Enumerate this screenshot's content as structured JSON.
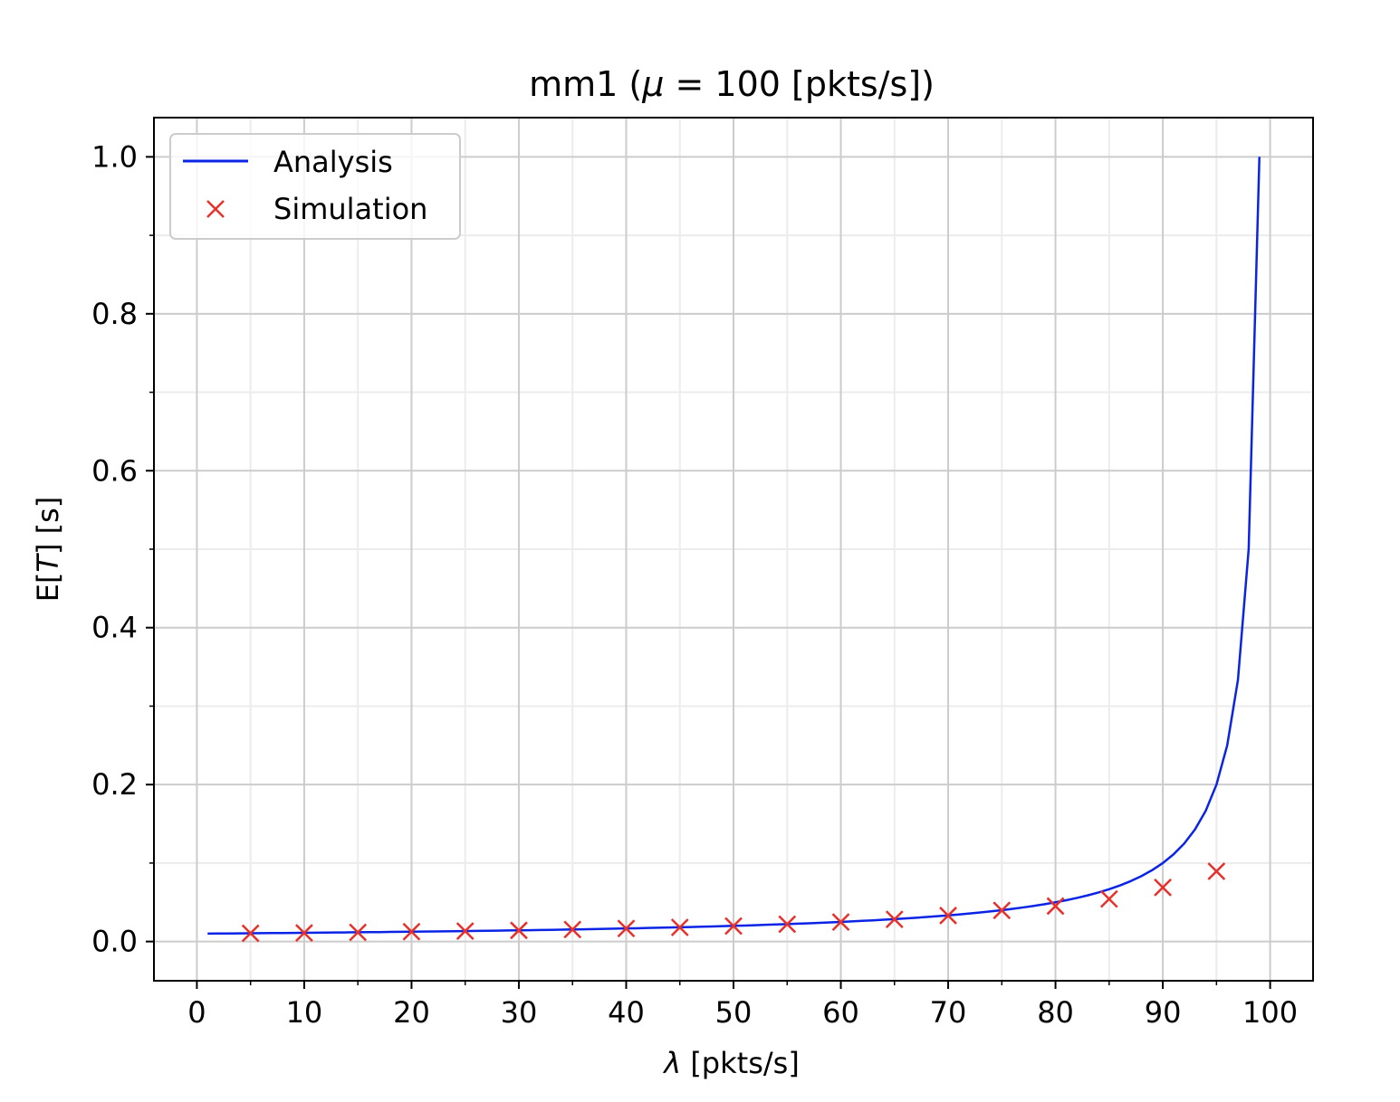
{
  "chart_data": {
    "type": "line",
    "title": "mm1 (μ = 100 [pkts/s])",
    "title_parts": {
      "prefix": "mm1 (",
      "mu": "μ",
      "rest": " = 100 [pkts/s])"
    },
    "xlabel": "λ [pkts/s]",
    "xlabel_parts": {
      "symbol": "λ",
      "rest": " [pkts/s]"
    },
    "ylabel": "E[T] [s]",
    "ylabel_parts": {
      "pre": "E[",
      "var": "T",
      "post": "] [s]"
    },
    "xlim": [
      -4,
      104
    ],
    "ylim": [
      -0.05,
      1.05
    ],
    "xticks": [
      0,
      10,
      20,
      30,
      40,
      50,
      60,
      70,
      80,
      90,
      100
    ],
    "xtick_labels": [
      "0",
      "10",
      "20",
      "30",
      "40",
      "50",
      "60",
      "70",
      "80",
      "90",
      "100"
    ],
    "yticks": [
      0.0,
      0.2,
      0.4,
      0.6,
      0.8,
      1.0
    ],
    "ytick_labels": [
      "0.0",
      "0.2",
      "0.4",
      "0.6",
      "0.8",
      "1.0"
    ],
    "x_minor_ticks": [
      5,
      15,
      25,
      35,
      45,
      55,
      65,
      75,
      85,
      95
    ],
    "y_minor_ticks": [
      0.1,
      0.3,
      0.5,
      0.7,
      0.9
    ],
    "grid": true,
    "legend_position": "top-left",
    "series": [
      {
        "name": "Analysis",
        "type": "line",
        "color": "#0a24e6",
        "formula": "1/(100-x)",
        "x_start": 1,
        "x_end": 99,
        "x_step": 1
      },
      {
        "name": "Simulation",
        "type": "scatter",
        "marker": "x",
        "color": "#e8302a",
        "x": [
          5,
          10,
          15,
          20,
          25,
          30,
          35,
          40,
          45,
          50,
          55,
          60,
          65,
          70,
          75,
          80,
          85,
          90,
          95
        ],
        "y": [
          0.0105,
          0.011,
          0.0117,
          0.0125,
          0.0133,
          0.0142,
          0.0153,
          0.0166,
          0.018,
          0.0198,
          0.0221,
          0.0248,
          0.0283,
          0.0331,
          0.0397,
          0.0452,
          0.0542,
          0.0689,
          0.0895
        ]
      }
    ]
  }
}
